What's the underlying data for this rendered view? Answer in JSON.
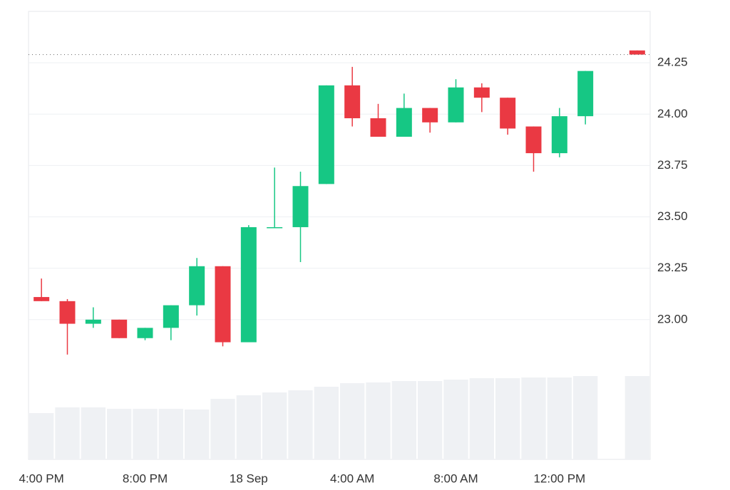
{
  "chart_data": {
    "type": "candlestick",
    "categories": [
      "4:00 PM",
      null,
      null,
      null,
      "8:00 PM",
      null,
      null,
      null,
      "18 Sep",
      null,
      null,
      null,
      "4:00 AM",
      null,
      null,
      null,
      "8:00 AM",
      null,
      null,
      null,
      "12:00 PM",
      null,
      null,
      null
    ],
    "open": [
      23.11,
      23.09,
      22.98,
      23.0,
      22.91,
      22.96,
      23.07,
      23.26,
      22.89,
      23.45,
      23.45,
      23.66,
      24.14,
      23.98,
      23.89,
      24.03,
      23.96,
      24.13,
      24.08,
      23.94,
      23.81,
      23.99,
      null,
      24.31
    ],
    "high": [
      23.2,
      23.1,
      23.06,
      23.0,
      22.96,
      23.07,
      23.3,
      23.26,
      23.46,
      23.74,
      23.72,
      24.14,
      24.23,
      24.05,
      24.1,
      24.03,
      24.17,
      24.15,
      24.08,
      23.94,
      24.03,
      24.21,
      null,
      24.31
    ],
    "low": [
      23.09,
      22.83,
      22.96,
      22.91,
      22.9,
      22.9,
      23.02,
      22.87,
      22.89,
      23.45,
      23.28,
      23.66,
      23.94,
      23.89,
      23.89,
      23.91,
      23.96,
      24.01,
      23.9,
      23.72,
      23.79,
      23.95,
      null,
      24.29
    ],
    "close": [
      23.09,
      22.98,
      23.0,
      22.91,
      22.96,
      23.07,
      23.26,
      22.89,
      23.45,
      23.45,
      23.65,
      24.14,
      23.98,
      23.89,
      24.03,
      23.96,
      24.13,
      24.08,
      23.93,
      23.81,
      23.99,
      24.21,
      null,
      24.29
    ],
    "volume": [
      65,
      73,
      73,
      71,
      71,
      71,
      70,
      85,
      90,
      94,
      97,
      102,
      107,
      108,
      110,
      110,
      112,
      114,
      114,
      115,
      115,
      117,
      null,
      117
    ],
    "up_color": "#16c784",
    "down_color": "#ea3943",
    "volume_color": "#eff1f4",
    "ylim": [
      22.32,
      24.5
    ],
    "yticks": [
      {
        "value": 23,
        "label": "23.00"
      },
      23.25,
      {
        "value": 23.5,
        "label": "23.50"
      },
      23.75,
      {
        "value": 24,
        "label": "24.00"
      },
      24.25
    ],
    "grid": true,
    "last_price_line": true
  }
}
